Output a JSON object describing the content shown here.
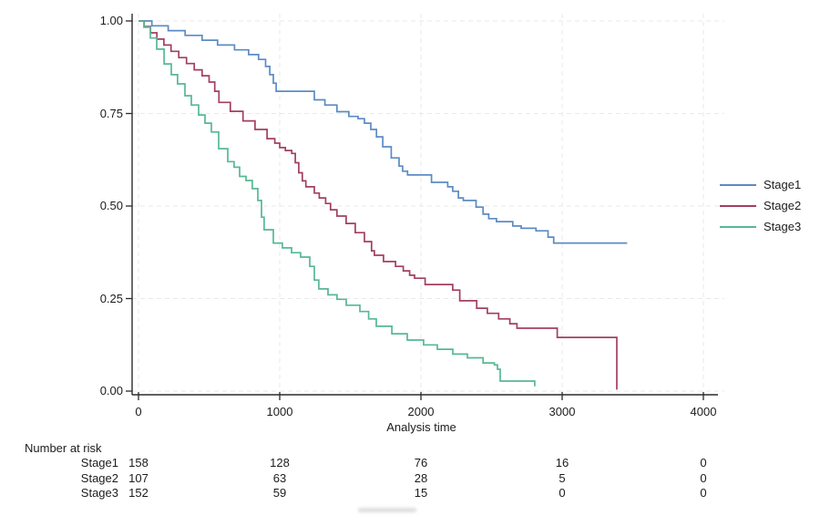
{
  "chart_data": {
    "type": "line",
    "subtype": "kaplan-meier-step",
    "title": "",
    "xlabel": "Analysis time",
    "ylabel": "",
    "xlim": [
      0,
      4000
    ],
    "ylim": [
      0,
      1
    ],
    "grid": "dashed, horizontal and vertical at ticks",
    "legend_position": "right",
    "colors": {
      "axis": "#2b2b2b",
      "grid": "#e9e9e9",
      "text": "#1c1c1c"
    },
    "x_axis": {
      "label": "Analysis time",
      "tick_values": [
        0,
        1000,
        2000,
        3000,
        4000
      ],
      "tick_labels": [
        "0",
        "1000",
        "2000",
        "3000",
        "4000"
      ]
    },
    "y_axis": {
      "label": "",
      "tick_values": [
        1.0,
        0.75,
        0.5,
        0.25,
        0.0
      ],
      "tick_labels": [
        "1.00",
        "0.75",
        "0.50",
        "0.25",
        "0.00"
      ]
    },
    "series": [
      {
        "name": "Stage1",
        "color": "#5b8bc4",
        "points": [
          [
            0,
            1.0
          ],
          [
            95,
            0.987
          ],
          [
            210,
            0.974
          ],
          [
            330,
            0.961
          ],
          [
            450,
            0.948
          ],
          [
            560,
            0.935
          ],
          [
            680,
            0.922
          ],
          [
            780,
            0.909
          ],
          [
            850,
            0.896
          ],
          [
            900,
            0.877
          ],
          [
            930,
            0.855
          ],
          [
            955,
            0.832
          ],
          [
            975,
            0.81
          ],
          [
            1230,
            0.81
          ],
          [
            1245,
            0.787
          ],
          [
            1320,
            0.773
          ],
          [
            1405,
            0.755
          ],
          [
            1490,
            0.742
          ],
          [
            1555,
            0.736
          ],
          [
            1600,
            0.724
          ],
          [
            1645,
            0.707
          ],
          [
            1685,
            0.687
          ],
          [
            1730,
            0.66
          ],
          [
            1790,
            0.63
          ],
          [
            1845,
            0.608
          ],
          [
            1870,
            0.594
          ],
          [
            1905,
            0.584
          ],
          [
            2075,
            0.564
          ],
          [
            2190,
            0.552
          ],
          [
            2225,
            0.54
          ],
          [
            2265,
            0.522
          ],
          [
            2300,
            0.515
          ],
          [
            2390,
            0.497
          ],
          [
            2440,
            0.478
          ],
          [
            2480,
            0.466
          ],
          [
            2535,
            0.458
          ],
          [
            2650,
            0.446
          ],
          [
            2710,
            0.44
          ],
          [
            2815,
            0.433
          ],
          [
            2900,
            0.416
          ],
          [
            2940,
            0.4
          ],
          [
            3460,
            0.4
          ]
        ]
      },
      {
        "name": "Stage2",
        "color": "#a23f63",
        "points": [
          [
            0,
            1.0
          ],
          [
            40,
            0.985
          ],
          [
            85,
            0.968
          ],
          [
            130,
            0.951
          ],
          [
            180,
            0.935
          ],
          [
            230,
            0.918
          ],
          [
            285,
            0.901
          ],
          [
            340,
            0.885
          ],
          [
            395,
            0.868
          ],
          [
            450,
            0.852
          ],
          [
            500,
            0.835
          ],
          [
            540,
            0.81
          ],
          [
            570,
            0.78
          ],
          [
            650,
            0.756
          ],
          [
            740,
            0.73
          ],
          [
            825,
            0.707
          ],
          [
            910,
            0.682
          ],
          [
            965,
            0.67
          ],
          [
            1000,
            0.658
          ],
          [
            1040,
            0.65
          ],
          [
            1085,
            0.642
          ],
          [
            1110,
            0.617
          ],
          [
            1135,
            0.59
          ],
          [
            1160,
            0.568
          ],
          [
            1185,
            0.552
          ],
          [
            1245,
            0.535
          ],
          [
            1280,
            0.522
          ],
          [
            1325,
            0.507
          ],
          [
            1360,
            0.49
          ],
          [
            1405,
            0.473
          ],
          [
            1470,
            0.453
          ],
          [
            1535,
            0.428
          ],
          [
            1600,
            0.404
          ],
          [
            1650,
            0.379
          ],
          [
            1670,
            0.367
          ],
          [
            1735,
            0.35
          ],
          [
            1820,
            0.337
          ],
          [
            1875,
            0.325
          ],
          [
            1920,
            0.313
          ],
          [
            1955,
            0.305
          ],
          [
            2030,
            0.288
          ],
          [
            2225,
            0.273
          ],
          [
            2275,
            0.244
          ],
          [
            2395,
            0.224
          ],
          [
            2470,
            0.21
          ],
          [
            2550,
            0.195
          ],
          [
            2630,
            0.182
          ],
          [
            2680,
            0.17
          ],
          [
            2965,
            0.145
          ],
          [
            3387,
            0.004
          ]
        ]
      },
      {
        "name": "Stage3",
        "color": "#57b894",
        "points": [
          [
            0,
            1.0
          ],
          [
            39,
            0.983
          ],
          [
            84,
            0.954
          ],
          [
            129,
            0.924
          ],
          [
            181,
            0.884
          ],
          [
            232,
            0.855
          ],
          [
            277,
            0.83
          ],
          [
            329,
            0.798
          ],
          [
            374,
            0.773
          ],
          [
            426,
            0.746
          ],
          [
            471,
            0.724
          ],
          [
            516,
            0.7
          ],
          [
            568,
            0.655
          ],
          [
            632,
            0.62
          ],
          [
            677,
            0.605
          ],
          [
            716,
            0.58
          ],
          [
            761,
            0.569
          ],
          [
            806,
            0.547
          ],
          [
            845,
            0.515
          ],
          [
            871,
            0.47
          ],
          [
            890,
            0.436
          ],
          [
            955,
            0.4
          ],
          [
            1019,
            0.387
          ],
          [
            1084,
            0.374
          ],
          [
            1148,
            0.362
          ],
          [
            1213,
            0.337
          ],
          [
            1245,
            0.3
          ],
          [
            1277,
            0.276
          ],
          [
            1342,
            0.26
          ],
          [
            1406,
            0.248
          ],
          [
            1471,
            0.232
          ],
          [
            1568,
            0.215
          ],
          [
            1630,
            0.195
          ],
          [
            1684,
            0.175
          ],
          [
            1794,
            0.155
          ],
          [
            1903,
            0.138
          ],
          [
            2019,
            0.125
          ],
          [
            2116,
            0.113
          ],
          [
            2226,
            0.1
          ],
          [
            2329,
            0.09
          ],
          [
            2440,
            0.076
          ],
          [
            2520,
            0.071
          ],
          [
            2542,
            0.059
          ],
          [
            2561,
            0.027
          ],
          [
            2806,
            0.013
          ]
        ]
      }
    ],
    "risk_table": {
      "title": "Number at risk",
      "times": [
        0,
        1000,
        2000,
        3000,
        4000
      ],
      "rows": [
        {
          "label": "Stage1",
          "values": [
            "158",
            "128",
            "76",
            "16",
            "0"
          ]
        },
        {
          "label": "Stage2",
          "values": [
            "107",
            "63",
            "28",
            "5",
            "0"
          ]
        },
        {
          "label": "Stage3",
          "values": [
            "152",
            "59",
            "15",
            "0",
            "0"
          ]
        }
      ]
    }
  },
  "legend": {
    "entries": [
      {
        "label": "Stage1"
      },
      {
        "label": "Stage2"
      },
      {
        "label": "Stage3"
      }
    ]
  }
}
